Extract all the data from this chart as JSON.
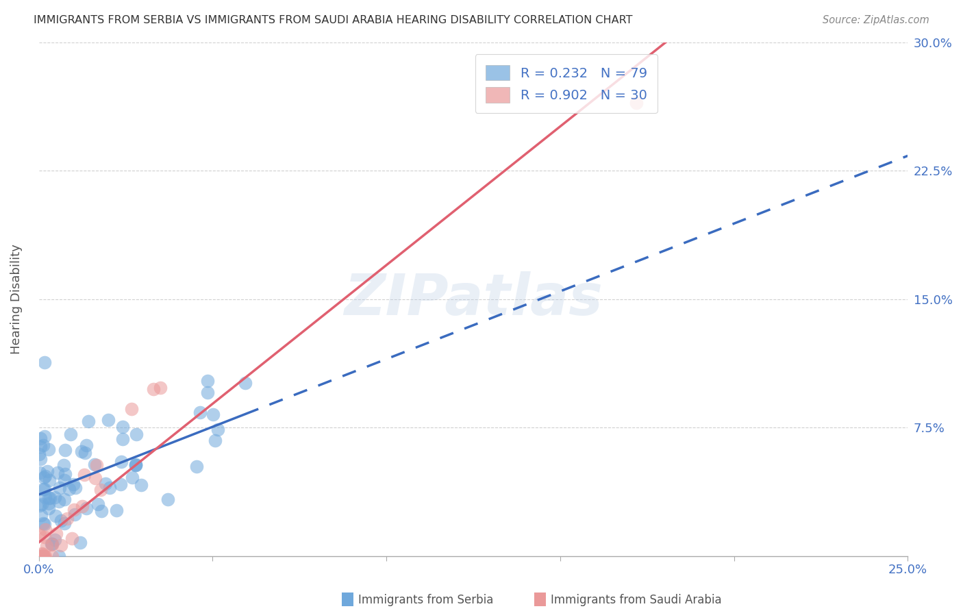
{
  "title": "IMMIGRANTS FROM SERBIA VS IMMIGRANTS FROM SAUDI ARABIA HEARING DISABILITY CORRELATION CHART",
  "source": "Source: ZipAtlas.com",
  "ylabel": "Hearing Disability",
  "serbia_color": "#6fa8dc",
  "saudi_color": "#ea9999",
  "serbia_line_color": "#3a6bbf",
  "saudi_line_color": "#e06070",
  "serbia_R": 0.232,
  "serbia_N": 79,
  "saudi_R": 0.902,
  "saudi_N": 30,
  "xlim": [
    0.0,
    0.25
  ],
  "ylim": [
    0.0,
    0.3
  ],
  "watermark": "ZIPatlas",
  "background_color": "#ffffff",
  "grid_color": "#d0d0d0",
  "serbia_legend_label": "Immigrants from Serbia",
  "saudi_legend_label": "Immigrants from Saudi Arabia"
}
